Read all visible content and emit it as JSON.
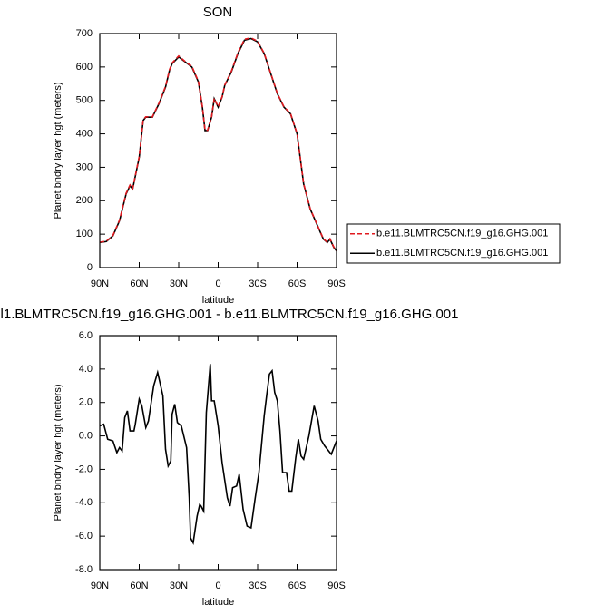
{
  "chart_data": [
    {
      "type": "line",
      "title": "SON",
      "xlabel": "latitude",
      "ylabel": "Planet bndry layer hgt (meters)",
      "x": [
        90,
        85,
        80,
        75,
        70,
        67,
        65,
        60,
        57,
        55,
        50,
        45,
        40,
        37,
        35,
        30,
        25,
        20,
        15,
        12,
        10,
        8,
        5,
        3,
        0,
        -3,
        -5,
        -10,
        -15,
        -20,
        -25,
        -30,
        -35,
        -40,
        -45,
        -50,
        -55,
        -60,
        -65,
        -70,
        -75,
        -80,
        -83,
        -85,
        -88,
        -90
      ],
      "series": [
        {
          "name": "b.e11.BLMTRC5CN.f19_g16.GHG.001",
          "color": "#e0191f",
          "dashed": true,
          "values": [
            76,
            79,
            96,
            142,
            222,
            247,
            236,
            332,
            442,
            451,
            451,
            492,
            542,
            592,
            612,
            633,
            616,
            602,
            557,
            481,
            411,
            411,
            451,
            506,
            481,
            511,
            546,
            587,
            642,
            683,
            687,
            677,
            641,
            581,
            521,
            481,
            461,
            401,
            251,
            176,
            131,
            86,
            76,
            86,
            61,
            51
          ]
        },
        {
          "name": "b.e11.BLMTRC5CN.f19_g16.GHG.001",
          "color": "#000000",
          "dashed": false,
          "values": [
            75,
            78,
            95,
            140,
            220,
            245,
            235,
            330,
            440,
            450,
            450,
            490,
            540,
            590,
            610,
            630,
            615,
            600,
            555,
            480,
            410,
            410,
            450,
            505,
            480,
            510,
            545,
            585,
            640,
            680,
            685,
            675,
            640,
            580,
            520,
            480,
            460,
            400,
            250,
            175,
            130,
            85,
            75,
            85,
            60,
            50
          ]
        }
      ],
      "xlim": [
        90,
        -90
      ],
      "xticks": [
        {
          "value": 90,
          "label": "90N"
        },
        {
          "value": 60,
          "label": "60N"
        },
        {
          "value": 30,
          "label": "30N"
        },
        0,
        {
          "value": -30,
          "label": "30S"
        },
        {
          "value": -60,
          "label": "60S"
        },
        {
          "value": -90,
          "label": "90S"
        }
      ],
      "ylim": [
        0,
        700
      ],
      "yticks": [
        0,
        100,
        200,
        300,
        400,
        500,
        600,
        700
      ],
      "legend": "right"
    },
    {
      "type": "line",
      "title": "l1.BLMTRC5CN.f19_g16.GHG.001 - b.e11.BLMTRC5CN.f19_g16.GHG.001",
      "xlabel": "latitude",
      "ylabel": "Planet bndry layer hgt (meters)",
      "x": [
        90,
        87,
        84,
        80,
        77,
        75,
        73,
        71,
        69,
        67,
        64,
        63,
        60,
        58,
        55,
        53,
        49,
        46,
        42,
        40,
        38,
        36,
        35,
        33,
        31,
        28,
        24,
        22,
        21,
        19,
        16,
        14,
        13,
        11,
        9,
        6,
        5,
        3,
        0,
        -3,
        -7,
        -9,
        -11,
        -14,
        -16,
        -19,
        -22,
        -25,
        -28,
        -31,
        -35,
        -37,
        -39,
        -41,
        -43,
        -45,
        -47,
        -49,
        -52,
        -54,
        -56,
        -59,
        -61,
        -63,
        -65,
        -69,
        -73,
        -76,
        -78,
        -81,
        -86,
        -90
      ],
      "values": [
        0.6,
        0.7,
        -0.2,
        -0.3,
        -1.0,
        -0.7,
        -0.9,
        1.1,
        1.5,
        0.3,
        0.3,
        0.7,
        2.2,
        1.8,
        0.5,
        0.9,
        3.0,
        3.8,
        2.4,
        -0.8,
        -1.8,
        -1.5,
        1.3,
        1.9,
        0.8,
        0.6,
        -0.7,
        -3.7,
        -6.1,
        -6.4,
        -4.8,
        -4.1,
        -4.2,
        -4.5,
        1.4,
        4.3,
        2.1,
        2.1,
        0.6,
        -1.6,
        -3.7,
        -4.2,
        -3.1,
        -3.0,
        -2.3,
        -4.4,
        -5.4,
        -5.5,
        -3.8,
        -2.2,
        1.2,
        2.5,
        3.7,
        3.9,
        2.6,
        2.1,
        0.3,
        -2.2,
        -2.2,
        -3.3,
        -3.3,
        -1.3,
        -0.2,
        -1.2,
        -1.4,
        0,
        1.8,
        0.9,
        -0.2,
        -0.6,
        -1.1,
        -0.3
      ],
      "color": "#000000",
      "xlim": [
        90,
        -90
      ],
      "xticks": [
        {
          "value": 90,
          "label": "90N"
        },
        {
          "value": 60,
          "label": "60N"
        },
        {
          "value": 30,
          "label": "30N"
        },
        0,
        {
          "value": -30,
          "label": "30S"
        },
        {
          "value": -60,
          "label": "60S"
        },
        {
          "value": -90,
          "label": "90S"
        }
      ],
      "ylim": [
        -8,
        6
      ],
      "yticks": [
        {
          "value": -8,
          "label": "-8.0"
        },
        {
          "value": -6,
          "label": "-6.0"
        },
        {
          "value": -4,
          "label": "-4.0"
        },
        {
          "value": -2,
          "label": "-2.0"
        },
        {
          "value": 0,
          "label": "0.0"
        },
        {
          "value": 2,
          "label": "2.0"
        },
        {
          "value": 4,
          "label": "4.0"
        },
        {
          "value": 6,
          "label": "6.0"
        }
      ]
    }
  ]
}
